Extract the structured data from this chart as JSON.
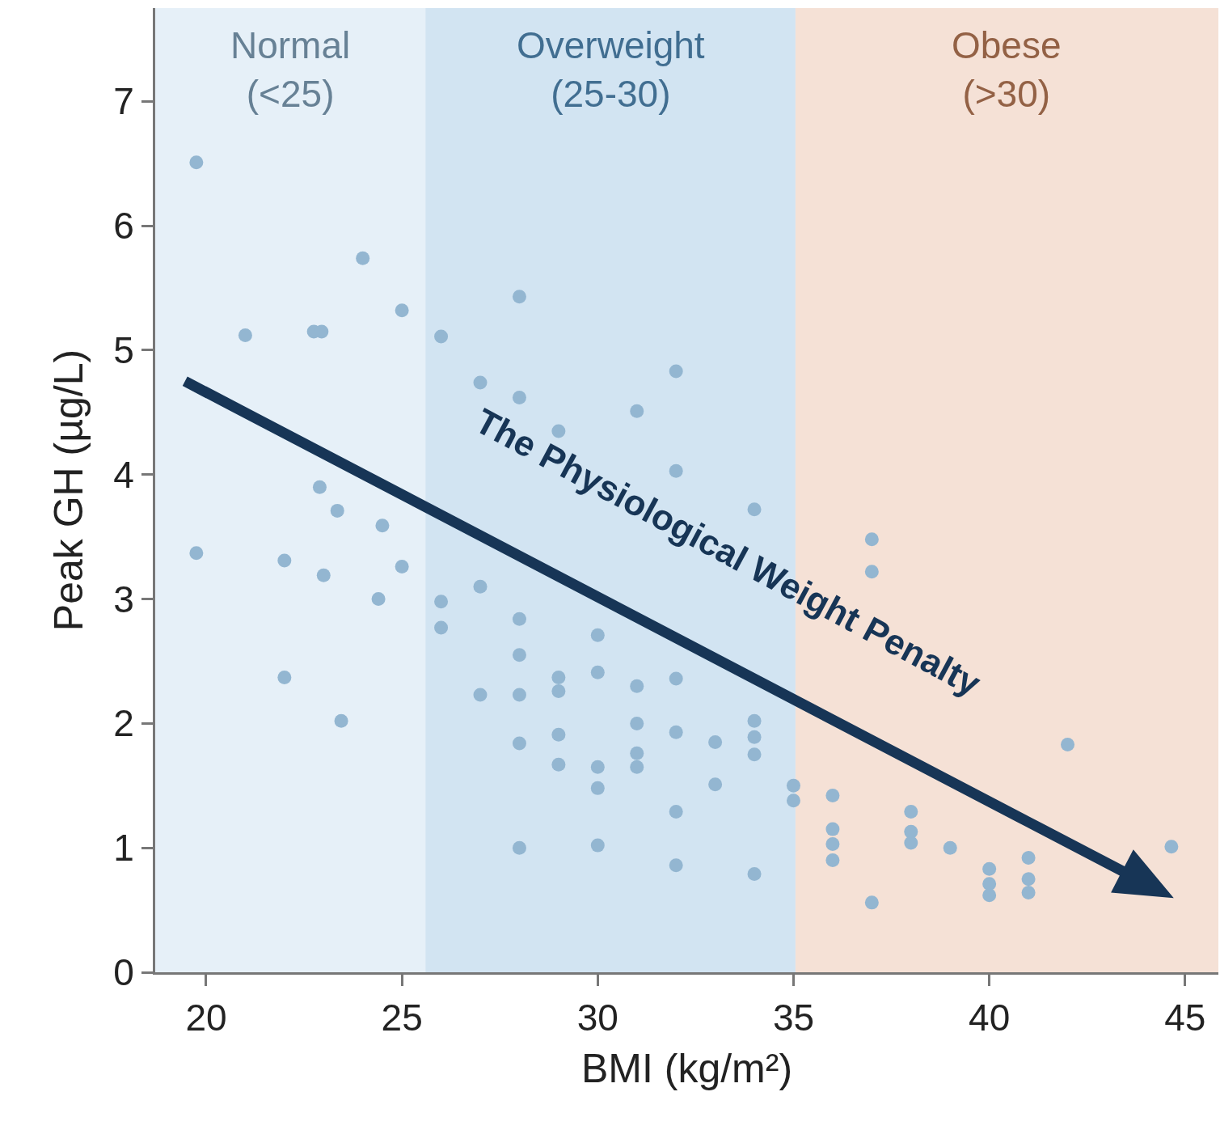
{
  "chart_data": {
    "type": "scatter",
    "xlabel": "BMI (kg/m²)",
    "ylabel": "Peak GH (µg/L)",
    "xlim": [
      18.7,
      45.85
    ],
    "xticks": [
      20,
      25,
      30,
      35,
      40,
      45
    ],
    "ylim": [
      0,
      7.75
    ],
    "yticks": [
      0,
      1,
      2,
      3,
      4,
      5,
      6,
      7
    ],
    "grid": false,
    "marker": "circle",
    "bands": [
      {
        "axis": "x",
        "from": 18.7,
        "to": 25.6,
        "label": "Normal\n(<25)",
        "color": "#e6f0f8"
      },
      {
        "axis": "x",
        "from": 25.6,
        "to": 35.05,
        "label": "Overweight\n(25-30)",
        "color": "#d2e4f2"
      },
      {
        "axis": "x",
        "from": 35.05,
        "to": 45.85,
        "label": "Obese\n(>30)",
        "color": "#f5e1d6"
      }
    ],
    "annotations": [
      "The Physiological Weight Penalty"
    ],
    "series": [
      {
        "color": "#93b6d1",
        "x": [
          19.75,
          19.75,
          21,
          22,
          22,
          22.75,
          22.95,
          22.9,
          23,
          23.35,
          23.45,
          24,
          24.5,
          24.4,
          25,
          25,
          26,
          26,
          26,
          27,
          27,
          27,
          28,
          28,
          28,
          28,
          28,
          28,
          28,
          29,
          29,
          29,
          29,
          29,
          30,
          30,
          30,
          30,
          30,
          31,
          31,
          31,
          31,
          31,
          32,
          32,
          32,
          32,
          32,
          32,
          33,
          33,
          34,
          34,
          34,
          34,
          34,
          35,
          35,
          36,
          36,
          36,
          36,
          37,
          37,
          37,
          38,
          38,
          38,
          39,
          40,
          40,
          40,
          41,
          41,
          41,
          42,
          44.65
        ],
        "values": [
          6.51,
          3.37,
          5.12,
          3.31,
          2.37,
          5.15,
          5.15,
          3.9,
          3.19,
          3.71,
          2.02,
          5.74,
          3.59,
          3.0,
          5.32,
          3.26,
          5.11,
          2.98,
          2.77,
          4.74,
          3.1,
          2.23,
          5.43,
          4.62,
          2.84,
          2.55,
          2.23,
          1.84,
          1.0,
          4.35,
          2.37,
          2.26,
          1.91,
          1.67,
          2.71,
          2.41,
          1.65,
          1.48,
          1.02,
          4.51,
          2.3,
          2.0,
          1.76,
          1.65,
          4.83,
          4.03,
          2.36,
          1.93,
          1.29,
          0.86,
          1.85,
          1.51,
          3.72,
          2.02,
          1.89,
          1.75,
          0.79,
          1.5,
          1.38,
          1.42,
          1.15,
          1.03,
          0.9,
          3.48,
          3.22,
          0.56,
          1.29,
          1.13,
          1.04,
          1.0,
          0.83,
          0.71,
          0.62,
          0.92,
          0.75,
          0.64,
          1.83,
          1.01
        ]
      }
    ]
  }
}
